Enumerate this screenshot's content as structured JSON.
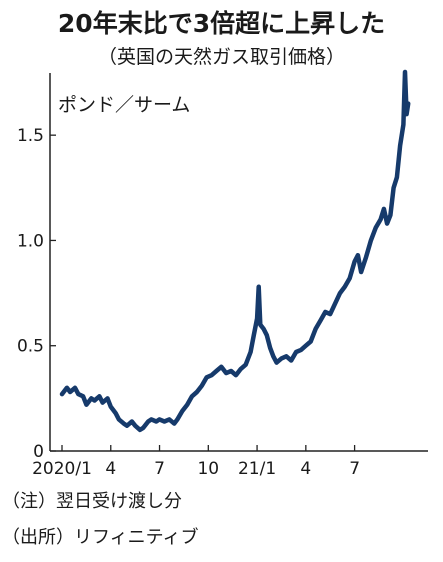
{
  "chart_data": {
    "type": "line",
    "title": "20年末比で3倍超に上昇した",
    "subtitle": "（英国の天然ガス取引価格）",
    "ylabel": "ポンド／サーム",
    "ylim": [
      0,
      1.8
    ],
    "yticks": [
      {
        "value": 0,
        "label": "0"
      },
      {
        "value": 0.5,
        "label": "0.5"
      },
      {
        "value": 1.0,
        "label": "1.0"
      },
      {
        "value": 1.5,
        "label": "1.5"
      }
    ],
    "xlim": [
      0,
      21.9
    ],
    "xticks": [
      {
        "value": 0,
        "label": "2020/1"
      },
      {
        "value": 3,
        "label": "4"
      },
      {
        "value": 6,
        "label": "7"
      },
      {
        "value": 9,
        "label": "10"
      },
      {
        "value": 12,
        "label": "21/1"
      },
      {
        "value": 15,
        "label": "4"
      },
      {
        "value": 18,
        "label": "7"
      }
    ],
    "series": [
      {
        "color": "#163a6b",
        "points": [
          [
            0.0,
            0.27
          ],
          [
            0.3,
            0.3
          ],
          [
            0.5,
            0.28
          ],
          [
            0.8,
            0.3
          ],
          [
            1.0,
            0.27
          ],
          [
            1.3,
            0.26
          ],
          [
            1.5,
            0.22
          ],
          [
            1.8,
            0.25
          ],
          [
            2.0,
            0.24
          ],
          [
            2.3,
            0.26
          ],
          [
            2.5,
            0.23
          ],
          [
            2.8,
            0.25
          ],
          [
            3.0,
            0.21
          ],
          [
            3.3,
            0.18
          ],
          [
            3.5,
            0.15
          ],
          [
            3.8,
            0.13
          ],
          [
            4.0,
            0.12
          ],
          [
            4.3,
            0.14
          ],
          [
            4.5,
            0.12
          ],
          [
            4.8,
            0.1
          ],
          [
            5.0,
            0.11
          ],
          [
            5.3,
            0.14
          ],
          [
            5.5,
            0.15
          ],
          [
            5.8,
            0.14
          ],
          [
            6.0,
            0.15
          ],
          [
            6.3,
            0.14
          ],
          [
            6.6,
            0.15
          ],
          [
            6.9,
            0.13
          ],
          [
            7.1,
            0.15
          ],
          [
            7.4,
            0.19
          ],
          [
            7.7,
            0.22
          ],
          [
            8.0,
            0.26
          ],
          [
            8.3,
            0.28
          ],
          [
            8.6,
            0.31
          ],
          [
            8.9,
            0.35
          ],
          [
            9.2,
            0.36
          ],
          [
            9.5,
            0.38
          ],
          [
            9.8,
            0.4
          ],
          [
            10.1,
            0.37
          ],
          [
            10.4,
            0.38
          ],
          [
            10.7,
            0.36
          ],
          [
            11.0,
            0.39
          ],
          [
            11.3,
            0.41
          ],
          [
            11.6,
            0.47
          ],
          [
            11.8,
            0.55
          ],
          [
            12.0,
            0.63
          ],
          [
            12.1,
            0.78
          ],
          [
            12.2,
            0.6
          ],
          [
            12.4,
            0.58
          ],
          [
            12.6,
            0.55
          ],
          [
            12.8,
            0.49
          ],
          [
            13.0,
            0.45
          ],
          [
            13.2,
            0.42
          ],
          [
            13.5,
            0.44
          ],
          [
            13.8,
            0.45
          ],
          [
            14.1,
            0.43
          ],
          [
            14.4,
            0.47
          ],
          [
            14.7,
            0.48
          ],
          [
            15.0,
            0.5
          ],
          [
            15.3,
            0.52
          ],
          [
            15.6,
            0.58
          ],
          [
            15.9,
            0.62
          ],
          [
            16.2,
            0.66
          ],
          [
            16.5,
            0.65
          ],
          [
            16.8,
            0.7
          ],
          [
            17.1,
            0.75
          ],
          [
            17.4,
            0.78
          ],
          [
            17.7,
            0.82
          ],
          [
            18.0,
            0.9
          ],
          [
            18.2,
            0.93
          ],
          [
            18.4,
            0.85
          ],
          [
            18.7,
            0.92
          ],
          [
            19.0,
            1.0
          ],
          [
            19.3,
            1.06
          ],
          [
            19.6,
            1.1
          ],
          [
            19.8,
            1.15
          ],
          [
            20.0,
            1.08
          ],
          [
            20.2,
            1.12
          ],
          [
            20.4,
            1.25
          ],
          [
            20.6,
            1.3
          ],
          [
            20.8,
            1.45
          ],
          [
            21.0,
            1.55
          ],
          [
            21.1,
            1.8
          ],
          [
            21.2,
            1.6
          ],
          [
            21.3,
            1.65
          ]
        ]
      }
    ]
  },
  "notes": {
    "line1": "（注）翌日受け渡し分",
    "line2": "（出所）リフィニティブ"
  }
}
